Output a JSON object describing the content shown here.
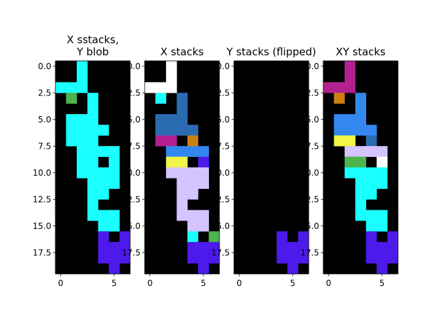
{
  "chart_data": [
    {
      "type": "heatmap",
      "title_lines": [
        "X sstacks,",
        "Y blob"
      ],
      "xticks": [
        "0",
        "5"
      ],
      "yticks": [
        "0.0",
        "2.5",
        "5.0",
        "7.5",
        "10.0",
        "12.5",
        "15.0",
        "17.5"
      ],
      "xlim": [
        -0.5,
        6.5
      ],
      "ylim": [
        19.5,
        -0.5
      ],
      "cells": [
        {
          "x": 2,
          "y": 0,
          "color": "#1affff"
        },
        {
          "x": 2,
          "y": 1,
          "color": "#1affff"
        },
        {
          "x": 0,
          "y": 2,
          "color": "#1affff"
        },
        {
          "x": 1,
          "y": 2,
          "color": "#1affff"
        },
        {
          "x": 2,
          "y": 2,
          "color": "#1affff"
        },
        {
          "x": 1,
          "y": 3,
          "color": "#4db34d"
        },
        {
          "x": 3,
          "y": 3,
          "color": "#1affff"
        },
        {
          "x": 3,
          "y": 4,
          "color": "#1affff"
        },
        {
          "x": 1,
          "y": 5,
          "color": "#1affff"
        },
        {
          "x": 2,
          "y": 5,
          "color": "#1affff"
        },
        {
          "x": 3,
          "y": 5,
          "color": "#1affff"
        },
        {
          "x": 1,
          "y": 6,
          "color": "#1affff"
        },
        {
          "x": 2,
          "y": 6,
          "color": "#1affff"
        },
        {
          "x": 3,
          "y": 6,
          "color": "#1affff"
        },
        {
          "x": 4,
          "y": 6,
          "color": "#1affff"
        },
        {
          "x": 1,
          "y": 7,
          "color": "#1affff"
        },
        {
          "x": 2,
          "y": 7,
          "color": "#1affff"
        },
        {
          "x": 3,
          "y": 7,
          "color": "#1affff"
        },
        {
          "x": 2,
          "y": 8,
          "color": "#1affff"
        },
        {
          "x": 3,
          "y": 8,
          "color": "#1affff"
        },
        {
          "x": 4,
          "y": 8,
          "color": "#1affff"
        },
        {
          "x": 5,
          "y": 8,
          "color": "#1affff"
        },
        {
          "x": 2,
          "y": 9,
          "color": "#1affff"
        },
        {
          "x": 3,
          "y": 9,
          "color": "#1affff"
        },
        {
          "x": 5,
          "y": 9,
          "color": "#1affff"
        },
        {
          "x": 2,
          "y": 10,
          "color": "#1affff"
        },
        {
          "x": 3,
          "y": 10,
          "color": "#1affff"
        },
        {
          "x": 4,
          "y": 10,
          "color": "#1affff"
        },
        {
          "x": 5,
          "y": 10,
          "color": "#1affff"
        },
        {
          "x": 3,
          "y": 11,
          "color": "#1affff"
        },
        {
          "x": 4,
          "y": 11,
          "color": "#1affff"
        },
        {
          "x": 5,
          "y": 11,
          "color": "#1affff"
        },
        {
          "x": 3,
          "y": 12,
          "color": "#1affff"
        },
        {
          "x": 4,
          "y": 12,
          "color": "#1affff"
        },
        {
          "x": 3,
          "y": 13,
          "color": "#1affff"
        },
        {
          "x": 3,
          "y": 14,
          "color": "#1affff"
        },
        {
          "x": 4,
          "y": 14,
          "color": "#1affff"
        },
        {
          "x": 5,
          "y": 14,
          "color": "#1affff"
        },
        {
          "x": 4,
          "y": 15,
          "color": "#1affff"
        },
        {
          "x": 5,
          "y": 15,
          "color": "#1affff"
        },
        {
          "x": 4,
          "y": 16,
          "color": "#4d1aeb"
        },
        {
          "x": 6,
          "y": 16,
          "color": "#4d1aeb"
        },
        {
          "x": 4,
          "y": 17,
          "color": "#4d1aeb"
        },
        {
          "x": 5,
          "y": 17,
          "color": "#4d1aeb"
        },
        {
          "x": 6,
          "y": 17,
          "color": "#4d1aeb"
        },
        {
          "x": 4,
          "y": 18,
          "color": "#4d1aeb"
        },
        {
          "x": 5,
          "y": 18,
          "color": "#4d1aeb"
        },
        {
          "x": 6,
          "y": 18,
          "color": "#4d1aeb"
        },
        {
          "x": 5,
          "y": 19,
          "color": "#4d1aeb"
        }
      ]
    },
    {
      "type": "heatmap",
      "title_lines": [
        "X stacks"
      ],
      "xticks": [
        "0",
        "5"
      ],
      "yticks": [
        "0.0",
        "2.5",
        "5.0",
        "7.5",
        "10.0",
        "12.5",
        "15.0",
        "17.5"
      ],
      "xlim": [
        -0.5,
        6.5
      ],
      "ylim": [
        19.5,
        -0.5
      ],
      "cells": [
        {
          "x": 2,
          "y": 0,
          "color": "#ffffff"
        },
        {
          "x": 2,
          "y": 1,
          "color": "#ffffff"
        },
        {
          "x": 0,
          "y": 2,
          "color": "#ffffff"
        },
        {
          "x": 1,
          "y": 2,
          "color": "#ffffff"
        },
        {
          "x": 2,
          "y": 2,
          "color": "#ffffff"
        },
        {
          "x": 1,
          "y": 3,
          "color": "#1affff"
        },
        {
          "x": 3,
          "y": 3,
          "color": "#2b6cb0"
        },
        {
          "x": 3,
          "y": 4,
          "color": "#2b6cb0"
        },
        {
          "x": 1,
          "y": 5,
          "color": "#2b6cb0"
        },
        {
          "x": 2,
          "y": 5,
          "color": "#2b6cb0"
        },
        {
          "x": 3,
          "y": 5,
          "color": "#2b6cb0"
        },
        {
          "x": 1,
          "y": 6,
          "color": "#2b6cb0"
        },
        {
          "x": 2,
          "y": 6,
          "color": "#2b6cb0"
        },
        {
          "x": 3,
          "y": 6,
          "color": "#2b6cb0"
        },
        {
          "x": 4,
          "y": 6,
          "color": "#2b6cb0"
        },
        {
          "x": 1,
          "y": 7,
          "color": "#b3208f"
        },
        {
          "x": 2,
          "y": 7,
          "color": "#b3208f"
        },
        {
          "x": 4,
          "y": 7,
          "color": "#cc8012"
        },
        {
          "x": 2,
          "y": 8,
          "color": "#3388f0"
        },
        {
          "x": 3,
          "y": 8,
          "color": "#3388f0"
        },
        {
          "x": 4,
          "y": 8,
          "color": "#3388f0"
        },
        {
          "x": 5,
          "y": 8,
          "color": "#3388f0"
        },
        {
          "x": 2,
          "y": 9,
          "color": "#f0f547"
        },
        {
          "x": 3,
          "y": 9,
          "color": "#f0f547"
        },
        {
          "x": 5,
          "y": 9,
          "color": "#4d1aeb"
        },
        {
          "x": 2,
          "y": 10,
          "color": "#d4c4ff"
        },
        {
          "x": 3,
          "y": 10,
          "color": "#d4c4ff"
        },
        {
          "x": 4,
          "y": 10,
          "color": "#d4c4ff"
        },
        {
          "x": 5,
          "y": 10,
          "color": "#d4c4ff"
        },
        {
          "x": 3,
          "y": 11,
          "color": "#d4c4ff"
        },
        {
          "x": 4,
          "y": 11,
          "color": "#d4c4ff"
        },
        {
          "x": 5,
          "y": 11,
          "color": "#d4c4ff"
        },
        {
          "x": 3,
          "y": 12,
          "color": "#d4c4ff"
        },
        {
          "x": 4,
          "y": 12,
          "color": "#d4c4ff"
        },
        {
          "x": 3,
          "y": 13,
          "color": "#d4c4ff"
        },
        {
          "x": 3,
          "y": 14,
          "color": "#d4c4ff"
        },
        {
          "x": 4,
          "y": 14,
          "color": "#d4c4ff"
        },
        {
          "x": 5,
          "y": 14,
          "color": "#d4c4ff"
        },
        {
          "x": 4,
          "y": 15,
          "color": "#d4c4ff"
        },
        {
          "x": 5,
          "y": 15,
          "color": "#d4c4ff"
        },
        {
          "x": 4,
          "y": 16,
          "color": "#1affff"
        },
        {
          "x": 6,
          "y": 16,
          "color": "#4db34d"
        },
        {
          "x": 4,
          "y": 17,
          "color": "#4d1aeb"
        },
        {
          "x": 5,
          "y": 17,
          "color": "#4d1aeb"
        },
        {
          "x": 6,
          "y": 17,
          "color": "#4d1aeb"
        },
        {
          "x": 4,
          "y": 18,
          "color": "#4d1aeb"
        },
        {
          "x": 5,
          "y": 18,
          "color": "#4d1aeb"
        },
        {
          "x": 6,
          "y": 18,
          "color": "#4d1aeb"
        },
        {
          "x": 5,
          "y": 19,
          "color": "#4d1aeb"
        }
      ]
    },
    {
      "type": "heatmap",
      "title_lines": [
        "Y stacks (flipped)"
      ],
      "xticks": [
        "0",
        "5"
      ],
      "yticks": [
        "0.0",
        "2.5",
        "5.0",
        "7.5",
        "10.0",
        "12.5",
        "15.0",
        "17.5"
      ],
      "xlim": [
        -0.5,
        6.5
      ],
      "ylim": [
        19.5,
        -0.5
      ],
      "cells": [
        {
          "x": 4,
          "y": 16,
          "color": "#4d1aeb"
        },
        {
          "x": 6,
          "y": 16,
          "color": "#4d1aeb"
        },
        {
          "x": 4,
          "y": 17,
          "color": "#4d1aeb"
        },
        {
          "x": 5,
          "y": 17,
          "color": "#4d1aeb"
        },
        {
          "x": 6,
          "y": 17,
          "color": "#4d1aeb"
        },
        {
          "x": 4,
          "y": 18,
          "color": "#4d1aeb"
        },
        {
          "x": 5,
          "y": 18,
          "color": "#4d1aeb"
        },
        {
          "x": 6,
          "y": 18,
          "color": "#4d1aeb"
        },
        {
          "x": 5,
          "y": 19,
          "color": "#4d1aeb"
        }
      ]
    },
    {
      "type": "heatmap",
      "title_lines": [
        "XY stacks"
      ],
      "xticks": [
        "0",
        "5"
      ],
      "yticks": [
        "0.0",
        "2.5",
        "5.0",
        "7.5",
        "10.0",
        "12.5",
        "15.0",
        "17.5"
      ],
      "xlim": [
        -0.5,
        6.5
      ],
      "ylim": [
        19.5,
        -0.5
      ],
      "cells": [
        {
          "x": 2,
          "y": 0,
          "color": "#b3208f"
        },
        {
          "x": 2,
          "y": 1,
          "color": "#b3208f"
        },
        {
          "x": 0,
          "y": 2,
          "color": "#b3208f"
        },
        {
          "x": 1,
          "y": 2,
          "color": "#b3208f"
        },
        {
          "x": 2,
          "y": 2,
          "color": "#b3208f"
        },
        {
          "x": 1,
          "y": 3,
          "color": "#cc8012"
        },
        {
          "x": 3,
          "y": 3,
          "color": "#3388f0"
        },
        {
          "x": 3,
          "y": 4,
          "color": "#3388f0"
        },
        {
          "x": 1,
          "y": 5,
          "color": "#3388f0"
        },
        {
          "x": 2,
          "y": 5,
          "color": "#3388f0"
        },
        {
          "x": 3,
          "y": 5,
          "color": "#3388f0"
        },
        {
          "x": 1,
          "y": 6,
          "color": "#3388f0"
        },
        {
          "x": 2,
          "y": 6,
          "color": "#3388f0"
        },
        {
          "x": 3,
          "y": 6,
          "color": "#3388f0"
        },
        {
          "x": 4,
          "y": 6,
          "color": "#3388f0"
        },
        {
          "x": 1,
          "y": 7,
          "color": "#f0f547"
        },
        {
          "x": 2,
          "y": 7,
          "color": "#f0f547"
        },
        {
          "x": 4,
          "y": 7,
          "color": "#2b6cb0"
        },
        {
          "x": 2,
          "y": 8,
          "color": "#d4c4ff"
        },
        {
          "x": 3,
          "y": 8,
          "color": "#d4c4ff"
        },
        {
          "x": 4,
          "y": 8,
          "color": "#d4c4ff"
        },
        {
          "x": 5,
          "y": 8,
          "color": "#d4c4ff"
        },
        {
          "x": 2,
          "y": 9,
          "color": "#4db34d"
        },
        {
          "x": 3,
          "y": 9,
          "color": "#4db34d"
        },
        {
          "x": 5,
          "y": 9,
          "color": "#ffffff"
        },
        {
          "x": 2,
          "y": 10,
          "color": "#1affff"
        },
        {
          "x": 3,
          "y": 10,
          "color": "#1affff"
        },
        {
          "x": 4,
          "y": 10,
          "color": "#1affff"
        },
        {
          "x": 5,
          "y": 10,
          "color": "#1affff"
        },
        {
          "x": 3,
          "y": 11,
          "color": "#1affff"
        },
        {
          "x": 4,
          "y": 11,
          "color": "#1affff"
        },
        {
          "x": 5,
          "y": 11,
          "color": "#1affff"
        },
        {
          "x": 3,
          "y": 12,
          "color": "#1affff"
        },
        {
          "x": 4,
          "y": 12,
          "color": "#1affff"
        },
        {
          "x": 3,
          "y": 13,
          "color": "#1affff"
        },
        {
          "x": 3,
          "y": 14,
          "color": "#1affff"
        },
        {
          "x": 4,
          "y": 14,
          "color": "#1affff"
        },
        {
          "x": 5,
          "y": 14,
          "color": "#1affff"
        },
        {
          "x": 4,
          "y": 15,
          "color": "#1affff"
        },
        {
          "x": 5,
          "y": 15,
          "color": "#1affff"
        },
        {
          "x": 4,
          "y": 16,
          "color": "#4d1aeb"
        },
        {
          "x": 6,
          "y": 16,
          "color": "#4d1aeb"
        },
        {
          "x": 4,
          "y": 17,
          "color": "#4d1aeb"
        },
        {
          "x": 5,
          "y": 17,
          "color": "#4d1aeb"
        },
        {
          "x": 6,
          "y": 17,
          "color": "#4d1aeb"
        },
        {
          "x": 4,
          "y": 18,
          "color": "#4d1aeb"
        },
        {
          "x": 5,
          "y": 18,
          "color": "#4d1aeb"
        },
        {
          "x": 6,
          "y": 18,
          "color": "#4d1aeb"
        },
        {
          "x": 5,
          "y": 19,
          "color": "#4d1aeb"
        }
      ]
    }
  ],
  "colors": {
    "background": "#000000",
    "cyan": "#1affff",
    "green": "#4db34d",
    "purple": "#4d1aeb",
    "white": "#ffffff",
    "steel_blue": "#2b6cb0",
    "magenta": "#b3208f",
    "orange": "#cc8012",
    "blue": "#3388f0",
    "yellow": "#f0f547",
    "lavender": "#d4c4ff"
  }
}
